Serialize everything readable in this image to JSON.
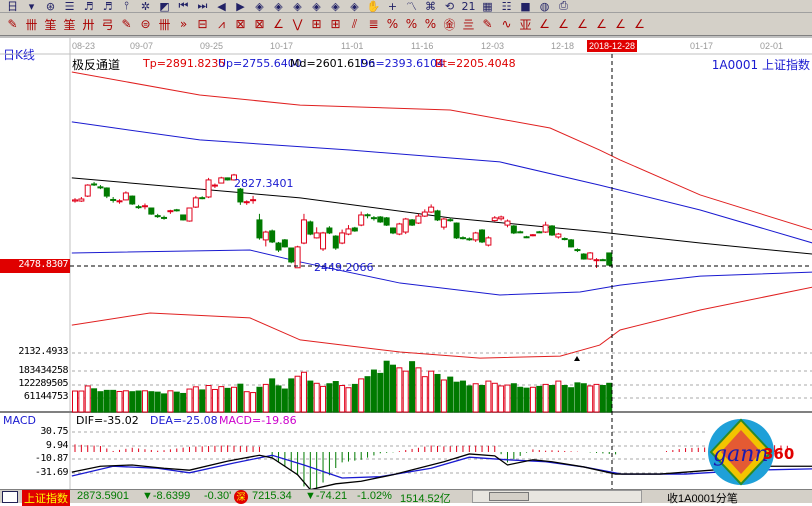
{
  "toolbar": {
    "row1": [
      "calendar-icon",
      "dropdown-icon",
      "network-icon",
      "document-icon",
      "chart-3-icon",
      "chart-9-icon",
      "pin-icon",
      "star-icon",
      "flag-icon",
      "first-icon",
      "next-icon",
      "left-icon",
      "right-icon",
      "arrow-left-icon",
      "arrow-up-icon",
      "arrow-both-icon",
      "arrow-cross-icon",
      "arrow-star-icon",
      "arrow-down-icon",
      "hand-icon",
      "crosshair-icon",
      "curve-icon",
      "grid-icon",
      "refresh-icon",
      "date21-icon",
      "calculator-icon",
      "notes-icon",
      "save-icon",
      "globe-icon",
      "printer-icon"
    ],
    "row1_glyphs": [
      "日",
      "▾",
      "⊛",
      "☰",
      "♬",
      "♬",
      "⫯",
      "✲",
      "◩",
      "⏮",
      "⏭",
      "◀",
      "▶",
      "◈",
      "◈",
      "◈",
      "◈",
      "◈",
      "◈",
      "✋",
      "+",
      "〽",
      "⌘",
      "⟲",
      "21",
      "▦",
      "☷",
      "■",
      "◍",
      "⎙"
    ],
    "row2": [
      "pen-icon",
      "parallel-lines-icon",
      "gold-line-icon",
      "gold-line2-icon",
      "fibonacci-icon",
      "spiral-icon",
      "pen2-icon",
      "circle-grid-icon",
      "triple-lines-icon",
      "more-icon",
      "rectangle-icon",
      "fan-icon",
      "box-diag-icon",
      "box-fan-icon",
      "angle-icon",
      "v-angle-icon",
      "grid-box-icon",
      "grid-box2-icon",
      "parallel-diag-icon",
      "bars-icon",
      "percent-red-icon",
      "percent-icon",
      "percent-line-icon",
      "gold-circle-icon",
      "gold-bars-icon",
      "pen3-icon",
      "wave-icon",
      "gold-t-icon",
      "angle-j-icon",
      "angle-f-icon",
      "angle-gold-icon",
      "angle-red-icon",
      "angle-red2-icon",
      "angle-red3-icon"
    ],
    "row2_glyphs": [
      "✎",
      "卌",
      "筀",
      "筀",
      "卅",
      "弓",
      "✎",
      "⊜",
      "卌",
      "»",
      "⊟",
      "⩘",
      "⊠",
      "⊠",
      "∠",
      "⋁",
      "⊞",
      "⊞",
      "⫽",
      "≣",
      "%",
      "%",
      "%",
      "㊎",
      "亖",
      "✎",
      "∿",
      "亚",
      "∠",
      "∠",
      "∠",
      "∠",
      "∠",
      "∠"
    ]
  },
  "header": {
    "period": "日K线",
    "indicator_name": "极反通道",
    "tp": "Tp=2891.8235",
    "up": "Up=2755.6400",
    "md": "Md=2601.6196",
    "dn": "Dn=2393.6104",
    "bt": "Bt=2205.4048",
    "symbol": "1A0001  上证指数"
  },
  "dates": [
    "08-23",
    "09-07",
    "09-25",
    "10-17",
    "11-01",
    "11-16",
    "12-03",
    "12-18",
    "01-17",
    "02-01"
  ],
  "cursor_date": "2018-12-28",
  "cursor_price": "2478.8307",
  "annotations": {
    "high": "2827.3401",
    "low": "2449.2066"
  },
  "axis_labels": {
    "price_bottom": "2132.4933",
    "vol": [
      "183434258",
      "122289505",
      "61144753"
    ],
    "macd": [
      "30.75",
      "9.94",
      "-10.87",
      "-31.69"
    ]
  },
  "macd_header": {
    "name": "MACD",
    "dif": "DIF=-35.02",
    "dea": "DEA=-25.08",
    "macd": "MACD=-19.86"
  },
  "colors": {
    "up": "#e0001a",
    "down": "#007a00",
    "band_outer": "#e02020",
    "band_inner": "#1a1ad0",
    "mid": "#000000",
    "dif": "#000000",
    "dea": "#1a1ad0"
  },
  "chart_data": {
    "type": "candlestick",
    "candles_ohlc": [
      [
        2747,
        2752,
        2760,
        2740
      ],
      [
        2747,
        2756,
        2765,
        2743
      ],
      [
        2769,
        2818,
        2822,
        2765
      ],
      [
        2823,
        2821,
        2832,
        2814
      ],
      [
        2810,
        2808,
        2818,
        2800
      ],
      [
        2805,
        2769,
        2808,
        2760
      ],
      [
        2754,
        2752,
        2765,
        2740
      ],
      [
        2745,
        2748,
        2755,
        2735
      ],
      [
        2752,
        2783,
        2790,
        2750
      ],
      [
        2769,
        2734,
        2772,
        2730
      ],
      [
        2722,
        2720,
        2730,
        2712
      ],
      [
        2723,
        2726,
        2736,
        2710
      ],
      [
        2716,
        2689,
        2718,
        2686
      ],
      [
        2682,
        2680,
        2690,
        2672
      ],
      [
        2674,
        2672,
        2682,
        2664
      ],
      [
        2701,
        2704,
        2708,
        2690
      ],
      [
        2708,
        2706,
        2712,
        2700
      ],
      [
        2685,
        2663,
        2687,
        2660
      ],
      [
        2658,
        2716,
        2718,
        2655
      ],
      [
        2720,
        2761,
        2770,
        2716
      ],
      [
        2762,
        2760,
        2768,
        2755
      ],
      [
        2765,
        2841,
        2850,
        2760
      ],
      [
        2815,
        2818,
        2825,
        2805
      ],
      [
        2827,
        2850,
        2855,
        2825
      ],
      [
        2850,
        2841,
        2852,
        2838
      ],
      [
        2841,
        2863,
        2868,
        2838
      ],
      [
        2800,
        2743,
        2805,
        2730
      ],
      [
        2741,
        2744,
        2750,
        2730
      ],
      [
        2750,
        2753,
        2770,
        2735
      ],
      [
        2663,
        2583,
        2690,
        2575
      ],
      [
        2574,
        2609,
        2615,
        2545
      ],
      [
        2614,
        2565,
        2620,
        2560
      ],
      [
        2560,
        2529,
        2565,
        2520
      ],
      [
        2574,
        2543,
        2578,
        2540
      ],
      [
        2538,
        2476,
        2540,
        2470
      ],
      [
        2450,
        2543,
        2548,
        2449
      ],
      [
        2560,
        2663,
        2690,
        2555
      ],
      [
        2654,
        2600,
        2660,
        2595
      ],
      [
        2583,
        2605,
        2630,
        2580
      ],
      [
        2534,
        2605,
        2610,
        2525
      ],
      [
        2627,
        2605,
        2635,
        2600
      ],
      [
        2591,
        2538,
        2595,
        2530
      ],
      [
        2560,
        2605,
        2620,
        2555
      ],
      [
        2600,
        2623,
        2640,
        2595
      ],
      [
        2627,
        2614,
        2632,
        2610
      ],
      [
        2640,
        2685,
        2700,
        2635
      ],
      [
        2686,
        2684,
        2692,
        2670
      ],
      [
        2673,
        2671,
        2680,
        2660
      ],
      [
        2676,
        2654,
        2680,
        2650
      ],
      [
        2672,
        2640,
        2676,
        2636
      ],
      [
        2627,
        2605,
        2630,
        2600
      ],
      [
        2600,
        2645,
        2650,
        2595
      ],
      [
        2609,
        2667,
        2672,
        2600
      ],
      [
        2663,
        2640,
        2667,
        2636
      ],
      [
        2649,
        2680,
        2690,
        2645
      ],
      [
        2680,
        2698,
        2710,
        2676
      ],
      [
        2698,
        2720,
        2732,
        2694
      ],
      [
        2703,
        2663,
        2708,
        2658
      ],
      [
        2631,
        2667,
        2672,
        2620
      ],
      [
        2664,
        2662,
        2672,
        2655
      ],
      [
        2649,
        2583,
        2652,
        2578
      ],
      [
        2584,
        2582,
        2590,
        2576
      ],
      [
        2579,
        2577,
        2585,
        2570
      ],
      [
        2574,
        2605,
        2610,
        2565
      ],
      [
        2618,
        2565,
        2622,
        2560
      ],
      [
        2551,
        2583,
        2590,
        2545
      ],
      [
        2660,
        2672,
        2680,
        2655
      ],
      [
        2668,
        2676,
        2682,
        2660
      ],
      [
        2640,
        2658,
        2665,
        2630
      ],
      [
        2636,
        2605,
        2640,
        2600
      ],
      [
        2610,
        2608,
        2615,
        2604
      ],
      [
        2588,
        2586,
        2592,
        2582
      ],
      [
        2594,
        2597,
        2600,
        2590
      ],
      [
        2610,
        2608,
        2614,
        2604
      ],
      [
        2609,
        2640,
        2655,
        2605
      ],
      [
        2636,
        2596,
        2640,
        2592
      ],
      [
        2587,
        2600,
        2605,
        2580
      ],
      [
        2580,
        2578,
        2585,
        2572
      ],
      [
        2574,
        2543,
        2578,
        2540
      ],
      [
        2531,
        2529,
        2536,
        2520
      ],
      [
        2511,
        2489,
        2515,
        2486
      ],
      [
        2489,
        2516,
        2520,
        2485
      ],
      [
        2484,
        2486,
        2493,
        2449
      ],
      [
        2486,
        2484,
        2490,
        2480
      ],
      [
        2516,
        2462,
        2518,
        2458
      ]
    ],
    "bands": {
      "Tp": [
        [
          -0.5,
          3321
        ],
        [
          19.6,
          3219
        ],
        [
          35.4,
          3174
        ],
        [
          59,
          3152
        ],
        [
          74.7,
          3072
        ],
        [
          82.5,
          2974
        ],
        [
          85.7,
          2930
        ],
        [
          98.3,
          2774
        ],
        [
          116,
          2618
        ]
      ],
      "Up": [
        [
          -0.5,
          3099
        ],
        [
          19.6,
          3019
        ],
        [
          43.2,
          2974
        ],
        [
          66.8,
          2921
        ],
        [
          82.5,
          2818
        ],
        [
          98.3,
          2707
        ],
        [
          116,
          2560
        ]
      ],
      "Md": [
        [
          -0.5,
          2850
        ],
        [
          35.4,
          2761
        ],
        [
          59,
          2672
        ],
        [
          82.5,
          2609
        ],
        [
          98.3,
          2560
        ],
        [
          116,
          2511
        ]
      ],
      "Dn": [
        [
          -0.5,
          2516
        ],
        [
          27.5,
          2529
        ],
        [
          35.4,
          2476
        ],
        [
          51.1,
          2382
        ],
        [
          66.8,
          2329
        ],
        [
          79.4,
          2342
        ],
        [
          85.7,
          2373
        ],
        [
          98.3,
          2413
        ],
        [
          116,
          2431
        ]
      ],
      "Bt": [
        [
          -0.5,
          2195
        ],
        [
          11.8,
          2249
        ],
        [
          27.5,
          2227
        ],
        [
          35.4,
          2129
        ],
        [
          51.1,
          2075
        ],
        [
          63.7,
          2048
        ],
        [
          76.3,
          2057
        ],
        [
          82.5,
          2106
        ],
        [
          85.7,
          2173
        ],
        [
          98.3,
          2262
        ],
        [
          116,
          2364
        ]
      ]
    },
    "volume_millions": [
      95,
      95,
      118,
      105,
      92,
      98,
      98,
      93,
      96,
      92,
      95,
      96,
      92,
      90,
      82,
      96,
      90,
      84,
      104,
      114,
      100,
      120,
      102,
      115,
      107,
      112,
      126,
      92,
      88,
      112,
      125,
      150,
      118,
      104,
      150,
      162,
      180,
      140,
      130,
      116,
      128,
      138,
      120,
      110,
      125,
      150,
      160,
      190,
      175,
      230,
      212,
      200,
      185,
      228,
      200,
      160,
      185,
      170,
      145,
      158,
      135,
      140,
      118,
      128,
      120,
      140,
      130,
      118,
      122,
      128,
      112,
      108,
      112,
      116,
      125,
      120,
      140,
      120,
      110,
      132,
      128,
      118,
      125,
      120,
      130
    ],
    "dif": [
      [
        -0.5,
        -31
      ],
      [
        4,
        -22
      ],
      [
        9,
        -20
      ],
      [
        14,
        -25
      ],
      [
        18,
        -28
      ],
      [
        24,
        -14
      ],
      [
        29,
        -5
      ],
      [
        31,
        -9
      ],
      [
        35,
        -35
      ],
      [
        37,
        -58
      ],
      [
        41,
        -49
      ],
      [
        45,
        -45
      ],
      [
        50,
        -35
      ],
      [
        56,
        -20
      ],
      [
        58,
        -15
      ],
      [
        62,
        -3
      ],
      [
        66,
        -6
      ],
      [
        68,
        -20
      ],
      [
        72,
        -12
      ],
      [
        75,
        -15
      ],
      [
        80,
        -23
      ],
      [
        85,
        -34
      ],
      [
        92,
        -34
      ],
      [
        100,
        -28
      ],
      [
        108,
        -22
      ],
      [
        116,
        -22
      ]
    ],
    "dea": [
      [
        -0.5,
        -37
      ],
      [
        6,
        -22
      ],
      [
        13,
        -25
      ],
      [
        18,
        -32
      ],
      [
        25,
        -17
      ],
      [
        31,
        -5
      ],
      [
        36,
        -20
      ],
      [
        42,
        -40
      ],
      [
        48,
        -38
      ],
      [
        56,
        -25
      ],
      [
        62,
        -8
      ],
      [
        68,
        -12
      ],
      [
        74,
        -15
      ],
      [
        80,
        -23
      ],
      [
        86,
        -34
      ],
      [
        96,
        -34
      ],
      [
        106,
        -28
      ],
      [
        116,
        -26
      ]
    ]
  },
  "status": {
    "index_name": "上证指数",
    "price": "2873.5901",
    "change": "▼-8.6399",
    "pct": "-0.30'",
    "sz_badge": "深",
    "sz_price": "7215.34",
    "sz_change": "▼-74.21",
    "sz_pct": "-1.02%",
    "amount": "1514.52亿",
    "tick_label": "收1A0001分笔"
  },
  "logo": {
    "text": "gann",
    "num": "360",
    "ring": "1234567890"
  }
}
